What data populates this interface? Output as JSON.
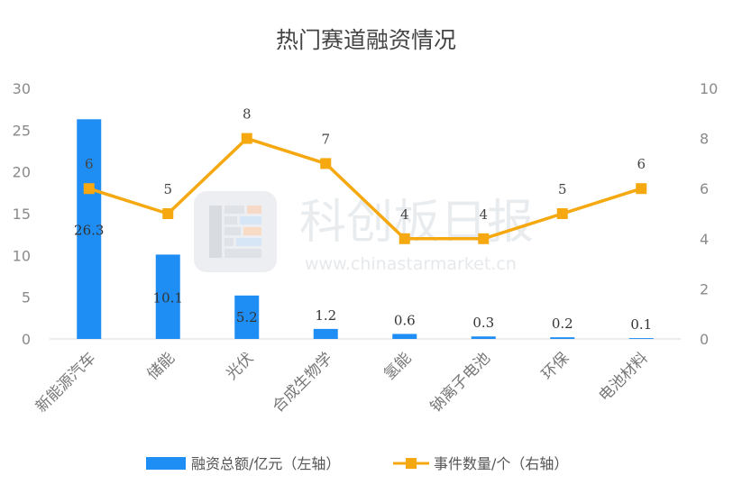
{
  "watermark": {
    "name": "科创板日报",
    "url": "www.chinastarmarket.cn"
  },
  "chart_data": {
    "type": "bar",
    "title": "热门赛道融资情况",
    "categories": [
      "新能源汽车",
      "储能",
      "光伏",
      "合成生物学",
      "氢能",
      "钠离子电池",
      "环保",
      "电池材料"
    ],
    "series": [
      {
        "name": "融资总额/亿元（左轴）",
        "type": "bar",
        "axis": "left",
        "color": "#1e8ef5",
        "values": [
          26.3,
          10.1,
          5.2,
          1.2,
          0.6,
          0.3,
          0.2,
          0.1
        ],
        "labels": [
          "26.3",
          "10.1",
          "5.2",
          "1.2",
          "0.6",
          "0.3",
          "0.2",
          "0.1"
        ]
      },
      {
        "name": "事件数量/个（右轴）",
        "type": "line",
        "axis": "right",
        "color": "#f5a810",
        "values": [
          6,
          5,
          8,
          7,
          4,
          4,
          5,
          6
        ],
        "labels": [
          "6",
          "5",
          "8",
          "7",
          "4",
          "4",
          "5",
          "6"
        ]
      }
    ],
    "y_left": {
      "min": 0,
      "max": 30,
      "ticks": [
        "0",
        "5",
        "10",
        "15",
        "20",
        "25",
        "30"
      ]
    },
    "y_right": {
      "min": 0,
      "max": 10,
      "ticks": [
        "0",
        "2",
        "4",
        "6",
        "8",
        "10"
      ]
    },
    "grid": false,
    "legend": "bottom"
  }
}
